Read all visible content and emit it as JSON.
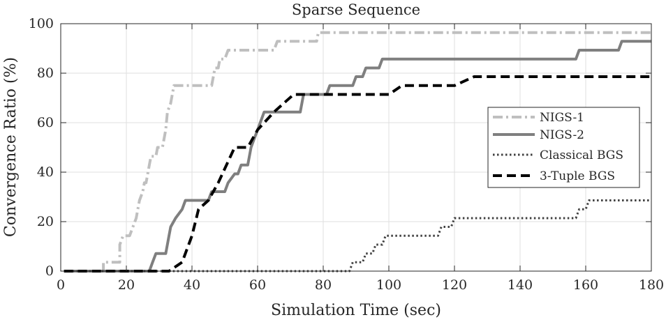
{
  "chart_data": {
    "type": "line",
    "title": "Sparse Sequence",
    "xlabel": "Simulation Time (sec)",
    "ylabel": "Convergence Ratio (%)",
    "xlim": [
      0,
      180
    ],
    "ylim": [
      0,
      100
    ],
    "xticks": [
      0,
      20,
      40,
      60,
      80,
      100,
      120,
      140,
      160,
      180
    ],
    "yticks": [
      0,
      20,
      40,
      60,
      80,
      100
    ],
    "grid": true,
    "legend_position": "right",
    "series": [
      {
        "name": "NIGS-1",
        "color": "#bfbfbf",
        "dash": "dashdot",
        "points": [
          [
            1,
            0
          ],
          [
            13,
            0
          ],
          [
            13,
            3.6
          ],
          [
            18,
            3.6
          ],
          [
            18,
            10.7
          ],
          [
            19,
            14.3
          ],
          [
            21,
            14.3
          ],
          [
            22,
            17.9
          ],
          [
            23,
            21.4
          ],
          [
            23.5,
            25
          ],
          [
            24,
            28.6
          ],
          [
            25,
            32.1
          ],
          [
            25.5,
            35.7
          ],
          [
            26,
            35.7
          ],
          [
            26.5,
            39.3
          ],
          [
            27,
            42.9
          ],
          [
            27.5,
            46.4
          ],
          [
            29,
            46.4
          ],
          [
            29.5,
            50
          ],
          [
            31,
            50
          ],
          [
            32,
            57.1
          ],
          [
            32.5,
            64.3
          ],
          [
            33.5,
            67.9
          ],
          [
            34,
            71.4
          ],
          [
            34.5,
            75
          ],
          [
            46,
            75
          ],
          [
            47,
            82.1
          ],
          [
            48,
            82.1
          ],
          [
            48.5,
            85.7
          ],
          [
            50,
            85.7
          ],
          [
            51,
            89.3
          ],
          [
            58,
            89.3
          ],
          [
            65,
            89.3
          ],
          [
            66,
            92.9
          ],
          [
            78,
            92.9
          ],
          [
            78.5,
            96.4
          ],
          [
            180,
            96.4
          ]
        ]
      },
      {
        "name": "NIGS-2",
        "color": "#7f7f7f",
        "dash": "solid",
        "points": [
          [
            1,
            0
          ],
          [
            27,
            0
          ],
          [
            28,
            3.6
          ],
          [
            29,
            7.1
          ],
          [
            32,
            7.1
          ],
          [
            33,
            14.3
          ],
          [
            33.5,
            17.9
          ],
          [
            35,
            21.4
          ],
          [
            37,
            25
          ],
          [
            38,
            28.6
          ],
          [
            45,
            28.6
          ],
          [
            46,
            32.1
          ],
          [
            50,
            32.1
          ],
          [
            51,
            35.7
          ],
          [
            53,
            39.3
          ],
          [
            54,
            39.3
          ],
          [
            55,
            42.9
          ],
          [
            57,
            42.9
          ],
          [
            58,
            50
          ],
          [
            59,
            53.6
          ],
          [
            60,
            57.1
          ],
          [
            61,
            60.7
          ],
          [
            62,
            64.3
          ],
          [
            73,
            64.3
          ],
          [
            74,
            71.4
          ],
          [
            81,
            71.4
          ],
          [
            82,
            75
          ],
          [
            89,
            75
          ],
          [
            90,
            78.6
          ],
          [
            92,
            78.6
          ],
          [
            93,
            82.1
          ],
          [
            97,
            82.1
          ],
          [
            98,
            85.7
          ],
          [
            157,
            85.7
          ],
          [
            158,
            89.3
          ],
          [
            170,
            89.3
          ],
          [
            171,
            92.9
          ],
          [
            180,
            92.9
          ]
        ]
      },
      {
        "name": "Classical BGS",
        "color": "#404040",
        "dash": "dotted",
        "points": [
          [
            1,
            0
          ],
          [
            88,
            0
          ],
          [
            89,
            3.6
          ],
          [
            92,
            3.6
          ],
          [
            93,
            7.1
          ],
          [
            95,
            7.1
          ],
          [
            96,
            10.7
          ],
          [
            98,
            10.7
          ],
          [
            99,
            14.3
          ],
          [
            115,
            14.3
          ],
          [
            116,
            17.9
          ],
          [
            119,
            17.9
          ],
          [
            120,
            21.4
          ],
          [
            157,
            21.4
          ],
          [
            158,
            25
          ],
          [
            160,
            25
          ],
          [
            161,
            28.6
          ],
          [
            180,
            28.6
          ]
        ]
      },
      {
        "name": "3-Tuple BGS",
        "color": "#000000",
        "dash": "dashed",
        "points": [
          [
            1,
            0
          ],
          [
            33,
            0
          ],
          [
            37,
            3.6
          ],
          [
            40,
            14.3
          ],
          [
            42,
            25
          ],
          [
            45,
            28.6
          ],
          [
            48,
            35.7
          ],
          [
            53,
            50
          ],
          [
            57,
            50
          ],
          [
            60,
            57.1
          ],
          [
            65,
            64.3
          ],
          [
            68,
            67.9
          ],
          [
            71,
            71.4
          ],
          [
            97,
            71.4
          ],
          [
            100,
            71.4
          ],
          [
            104,
            75
          ],
          [
            118,
            75
          ],
          [
            120,
            75
          ],
          [
            126,
            78.6
          ],
          [
            180,
            78.6
          ]
        ]
      }
    ]
  }
}
